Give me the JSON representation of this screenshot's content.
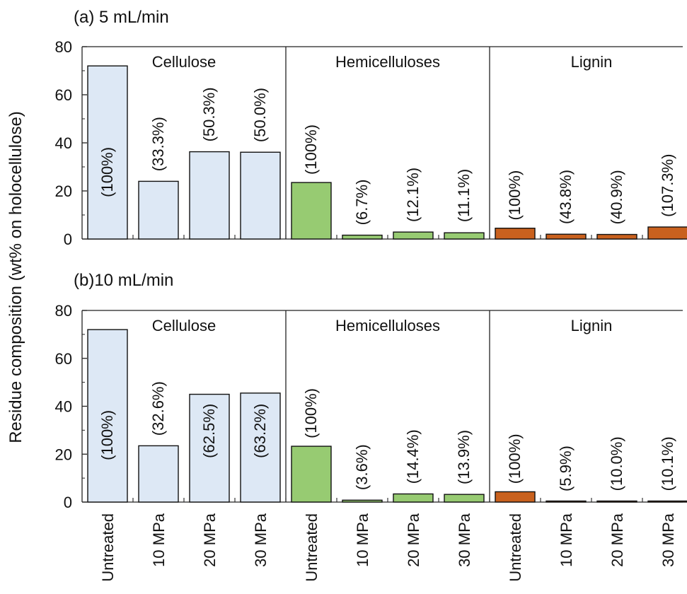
{
  "figure": {
    "ylabel": "Residue composition (wt% on holocellulose)"
  },
  "chart_data": [
    {
      "type": "bar",
      "title": "(a) 5 mL/min",
      "ylim": [
        0,
        80
      ],
      "yticks": [
        0,
        20,
        40,
        60,
        80
      ],
      "categories": [
        "Untreated",
        "10 MPa",
        "20 MPa",
        "30 MPa"
      ],
      "groups": [
        {
          "name": "Cellulose",
          "color": "#dde8f5",
          "values": [
            72,
            24,
            36.3,
            36.1
          ],
          "labels": [
            "(100%)",
            "(33.3%)",
            "(50.3%)",
            "(50.0%)"
          ]
        },
        {
          "name": "Hemicelluloses",
          "color": "#97cb72",
          "values": [
            23.5,
            1.6,
            2.9,
            2.6
          ],
          "labels": [
            "(100%)",
            "(6.7%)",
            "(12.1%)",
            "(11.1%)"
          ]
        },
        {
          "name": "Lignin",
          "color": "#c9611e",
          "values": [
            4.5,
            2,
            1.9,
            5
          ],
          "labels": [
            "(100%)",
            "(43.8%)",
            "(40.9%)",
            "(107.3%)"
          ]
        }
      ]
    },
    {
      "type": "bar",
      "title": "(b)10 mL/min",
      "ylim": [
        0,
        80
      ],
      "yticks": [
        0,
        20,
        40,
        60,
        80
      ],
      "categories": [
        "Untreated",
        "10 MPa",
        "20 MPa",
        "30 MPa"
      ],
      "groups": [
        {
          "name": "Cellulose",
          "color": "#dde8f5",
          "values": [
            72,
            23.5,
            45,
            45.5
          ],
          "labels": [
            "(100%)",
            "(32.6%)",
            "(62.5%)",
            "(63.2%)"
          ]
        },
        {
          "name": "Hemicelluloses",
          "color": "#97cb72",
          "values": [
            23.3,
            0.8,
            3.4,
            3.2
          ],
          "labels": [
            "(100%)",
            "(3.6%)",
            "(14.4%)",
            "(13.9%)"
          ]
        },
        {
          "name": "Lignin",
          "color": "#c9611e",
          "values": [
            4.3,
            0.25,
            0.43,
            0.43
          ],
          "labels": [
            "(100%)",
            "(5.9%)",
            "(10.0%)",
            "(10.1%)"
          ]
        }
      ]
    }
  ]
}
